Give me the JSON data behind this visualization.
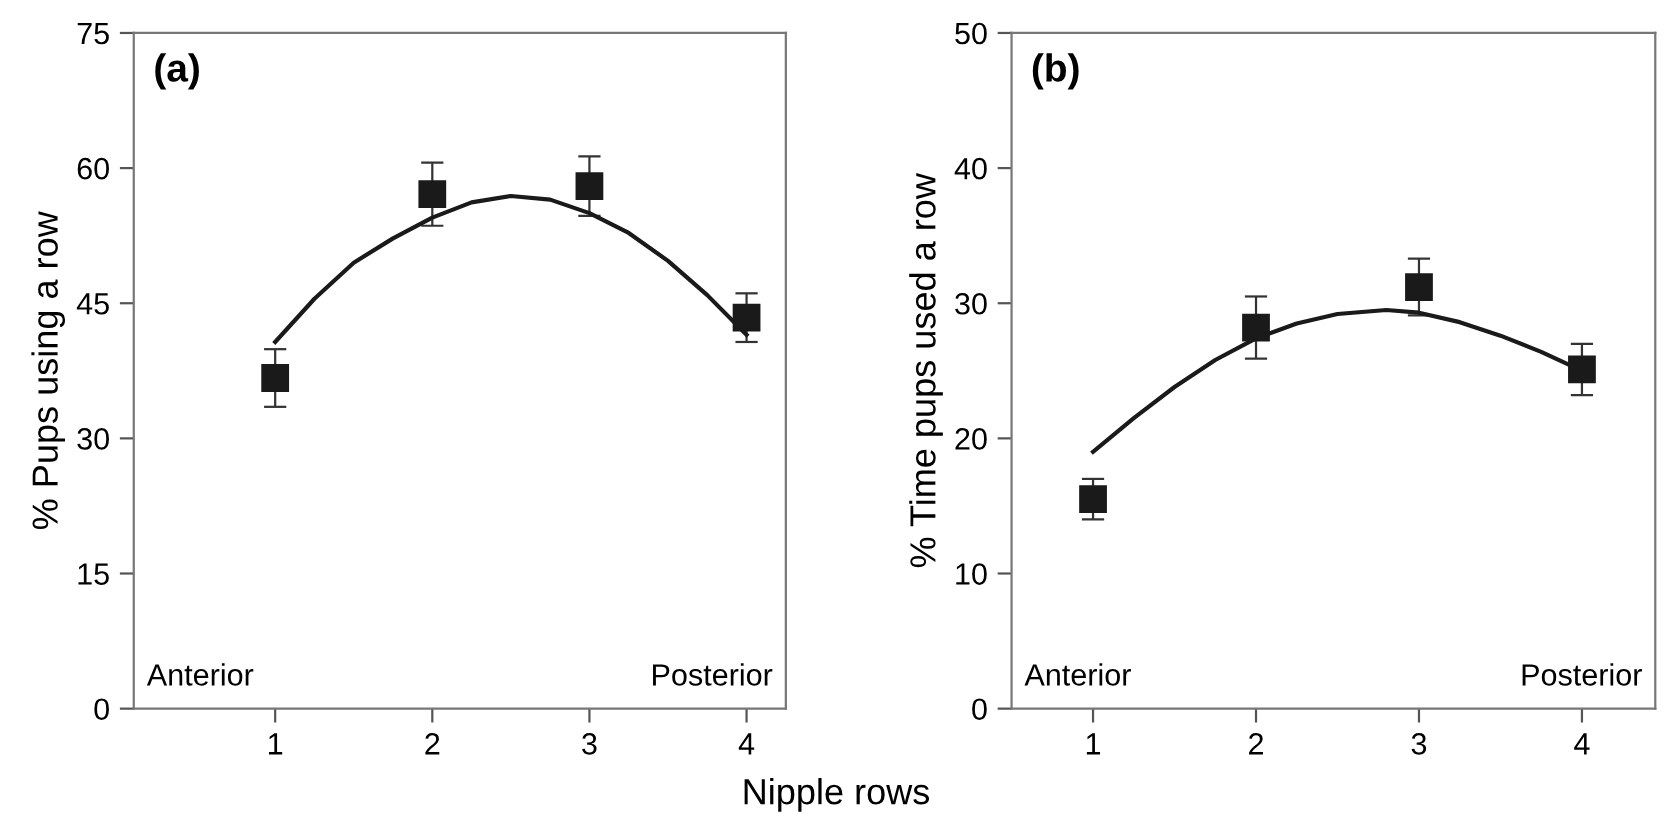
{
  "chart_data": [
    {
      "type": "scatter",
      "title": "(a)",
      "xlabel": "Nipple rows",
      "ylabel": "% Pups using a row",
      "x": [
        1,
        2,
        3,
        4
      ],
      "xlim": [
        0.1,
        4.25
      ],
      "xticks": [
        1,
        2,
        3,
        4
      ],
      "ylim": [
        0,
        75
      ],
      "yticks": [
        0,
        15,
        30,
        45,
        60,
        75
      ],
      "marker": "square",
      "grid": false,
      "legend": false,
      "annotations": [
        "Anterior",
        "Posterior"
      ],
      "series": [
        {
          "color": "#1a1a1a",
          "values": [
            36.7,
            57.1,
            58.0,
            43.4
          ],
          "errors": [
            3.2,
            3.5,
            3.3,
            2.7
          ]
        },
        {
          "type": "line",
          "color": "#1a1a1a",
          "x": [
            1,
            1.25,
            1.5,
            1.75,
            2,
            2.25,
            2.5,
            2.75,
            3,
            3.25,
            3.5,
            3.75,
            4
          ],
          "values": [
            40.7,
            45.5,
            49.5,
            52.2,
            54.5,
            56.2,
            56.9,
            56.5,
            55.0,
            52.8,
            49.7,
            45.9,
            41.5
          ],
          "marker": "none",
          "line_style": "solid"
        }
      ]
    },
    {
      "type": "scatter",
      "title": "(b)",
      "ylabel": "% Time pups used a row",
      "x": [
        1,
        2,
        3,
        4
      ],
      "xlim": [
        0.5,
        4.45
      ],
      "xticks": [
        1,
        2,
        3,
        4
      ],
      "ylim": [
        0,
        50
      ],
      "yticks": [
        0,
        10,
        20,
        30,
        40,
        50
      ],
      "marker": "square",
      "grid": false,
      "legend": false,
      "annotations": [
        "Anterior",
        "Posterior"
      ],
      "series": [
        {
          "color": "#1a1a1a",
          "values": [
            15.5,
            28.2,
            31.2,
            25.1
          ],
          "errors": [
            1.5,
            2.3,
            2.1,
            1.9
          ]
        },
        {
          "type": "line",
          "color": "#1a1a1a",
          "x": [
            1,
            1.25,
            1.5,
            1.75,
            2,
            2.25,
            2.5,
            2.8,
            3,
            3.25,
            3.5,
            3.75,
            4
          ],
          "values": [
            19.0,
            21.5,
            23.8,
            25.8,
            27.4,
            28.5,
            29.2,
            29.5,
            29.3,
            28.6,
            27.6,
            26.4,
            25.0
          ],
          "marker": "none",
          "line_style": "solid"
        }
      ]
    }
  ]
}
